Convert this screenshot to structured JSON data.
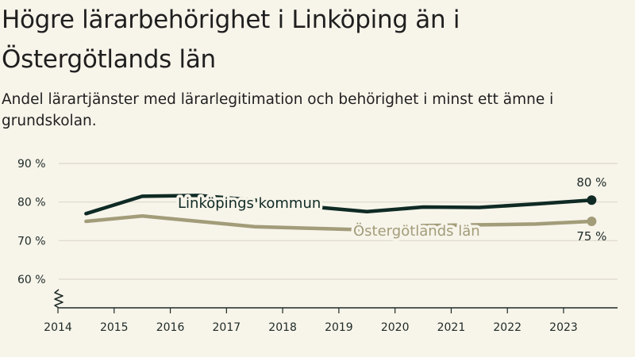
{
  "header": {
    "title": "Högre lärarbehörighet i Linköping än i Östergötlands län",
    "subtitle": "Andel lärartjänster med lärarlegitimation och behörighet i minst ett ämne i grundskolan."
  },
  "chart_data": {
    "type": "line",
    "title": "Högre lärarbehörighet i Linköping än i Östergötlands län",
    "subtitle": "Andel lärartjänster med lärarlegitimation och behörighet i minst ett ämne i grundskolan.",
    "xlabel": "",
    "ylabel": "",
    "x_ticks": [
      "2014",
      "2015",
      "2016",
      "2017",
      "2018",
      "2019",
      "2020",
      "2021",
      "2022",
      "2023"
    ],
    "y_ticks": [
      "60 %",
      "70 %",
      "80 %",
      "90 %"
    ],
    "ylim": [
      53,
      90
    ],
    "axis_break": true,
    "grid": true,
    "x": [
      2014.5,
      2015.5,
      2016.5,
      2017.5,
      2018.5,
      2019.5,
      2020.5,
      2021.5,
      2022.5,
      2023.5
    ],
    "series": [
      {
        "name": "Linköpings kommun",
        "color": "#0f2a24",
        "values": [
          77,
          81.5,
          81.7,
          80.5,
          78.8,
          77.5,
          78.7,
          78.6,
          79.5,
          80.5
        ],
        "end_label": "80 %"
      },
      {
        "name": "Östergötlands län",
        "color": "#a29c79",
        "values": [
          75,
          76.4,
          75,
          73.6,
          73.2,
          72.8,
          73.9,
          74.1,
          74.3,
          75
        ],
        "end_label": "75 %"
      }
    ]
  }
}
